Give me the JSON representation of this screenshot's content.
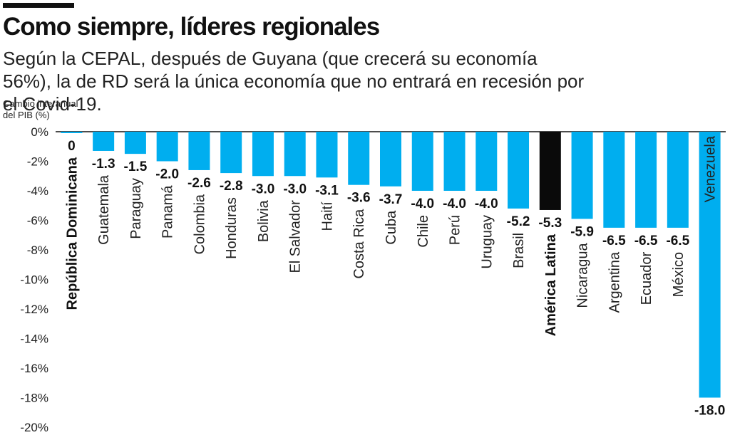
{
  "header": {
    "title": "Como siempre, líderes regionales",
    "subtitle": "Según la CEPAL, después de Guyana (que crecerá su economía 56%), la de RD será la única economía que no entrará en recesión por el Covid-19."
  },
  "colors": {
    "bar": "#00aeef",
    "highlight": "#0a0a0a",
    "axis": "#111111",
    "grid": "#bfbfbf"
  },
  "chart_data": {
    "type": "bar",
    "title": "Como siempre, líderes regionales",
    "ylabel": "Cambio interanual del PIB (%)",
    "ylabel_lines": [
      "Cambio interanual",
      "del PIB (%)"
    ],
    "xlabel": "",
    "ylim": [
      -20,
      0
    ],
    "yticks": [
      0,
      -2,
      -4,
      -6,
      -8,
      -10,
      -12,
      -14,
      -16,
      -18,
      -20
    ],
    "ytick_labels": [
      "0%",
      "-2%",
      "-4%",
      "-6%",
      "-8%",
      "-10%",
      "-12%",
      "-14%",
      "-16%",
      "-18%",
      "-20%"
    ],
    "categories": [
      "República Dominicana",
      "Guatemala",
      "Paraguay",
      "Panamá",
      "Colombia",
      "Honduras",
      "Bolivia",
      "El Salvador",
      "Haití",
      "Costa Rica",
      "Cuba",
      "Chile",
      "Perú",
      "Uruguay",
      "Brasil",
      "América Latina",
      "Nicaragua",
      "Argentina",
      "Ecuador",
      "México",
      "Venezuela"
    ],
    "values": [
      0,
      -1.3,
      -1.5,
      -2.0,
      -2.6,
      -2.8,
      -3.0,
      -3.0,
      -3.1,
      -3.6,
      -3.7,
      -4.0,
      -4.0,
      -4.0,
      -5.2,
      -5.3,
      -5.9,
      -6.5,
      -6.5,
      -6.5,
      -18.0
    ],
    "value_labels": [
      "0",
      "-1.3",
      "-1.5",
      "-2.0",
      "-2.6",
      "-2.8",
      "-3.0",
      "-3.0",
      "-3.1",
      "-3.6",
      "-3.7",
      "-4.0",
      "-4.0",
      "-4.0",
      "-5.2",
      "-5.3",
      "-5.9",
      "-6.5",
      "-6.5",
      "-6.5",
      "-18.0"
    ],
    "bold_categories": [
      "República Dominicana",
      "América Latina"
    ],
    "highlight_category": "América Latina",
    "grid": false
  }
}
